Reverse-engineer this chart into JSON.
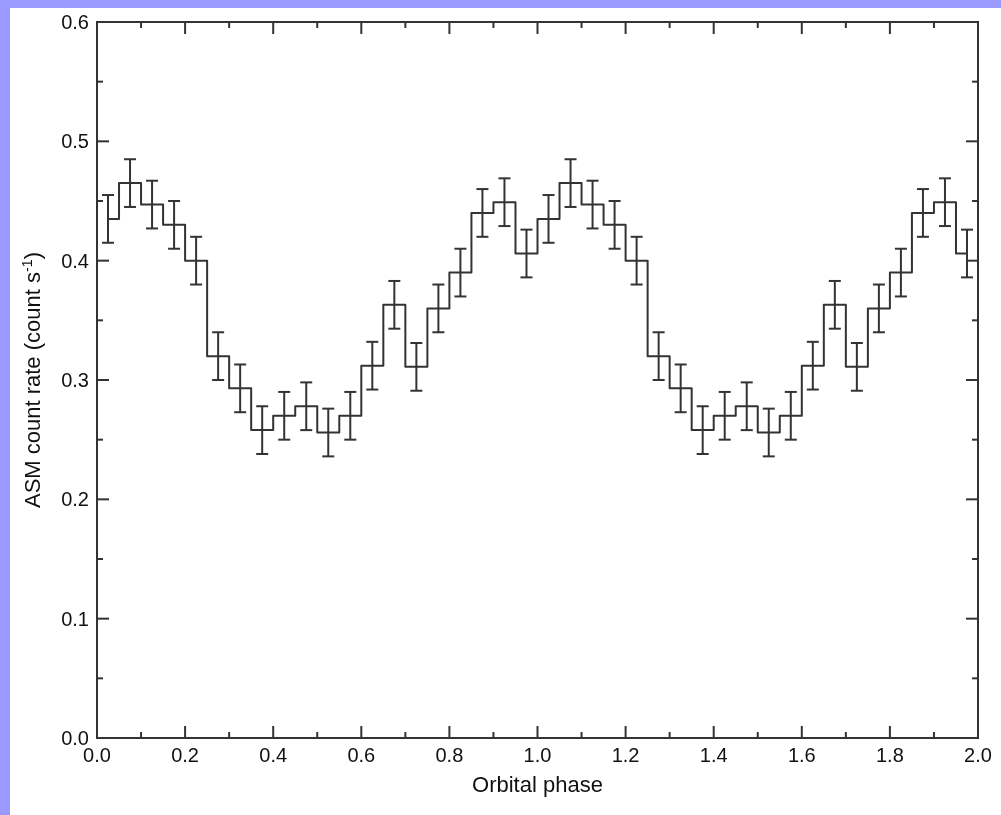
{
  "chart_data": {
    "type": "step",
    "xlabel": "Orbital phase",
    "ylabel": "ASM count rate (count s$^{-1}$)",
    "x": [
      0.025,
      0.075,
      0.125,
      0.175,
      0.225,
      0.275,
      0.325,
      0.375,
      0.425,
      0.475,
      0.525,
      0.575,
      0.625,
      0.675,
      0.725,
      0.775,
      0.825,
      0.875,
      0.925,
      0.975,
      1.025,
      1.075,
      1.125,
      1.175,
      1.225,
      1.275,
      1.325,
      1.375,
      1.425,
      1.475,
      1.525,
      1.575,
      1.625,
      1.675,
      1.725,
      1.775,
      1.825,
      1.875,
      1.925,
      1.975
    ],
    "values": [
      0.435,
      0.465,
      0.447,
      0.43,
      0.4,
      0.32,
      0.293,
      0.258,
      0.27,
      0.278,
      0.256,
      0.27,
      0.312,
      0.363,
      0.311,
      0.36,
      0.39,
      0.44,
      0.449,
      0.406,
      0.435,
      0.465,
      0.447,
      0.43,
      0.4,
      0.32,
      0.293,
      0.258,
      0.27,
      0.278,
      0.256,
      0.27,
      0.312,
      0.363,
      0.311,
      0.36,
      0.39,
      0.44,
      0.449,
      0.406
    ],
    "errors": [
      0.02,
      0.02,
      0.02,
      0.02,
      0.02,
      0.02,
      0.02,
      0.02,
      0.02,
      0.02,
      0.02,
      0.02,
      0.02,
      0.02,
      0.02,
      0.02,
      0.02,
      0.02,
      0.02,
      0.02,
      0.02,
      0.02,
      0.02,
      0.02,
      0.02,
      0.02,
      0.02,
      0.02,
      0.02,
      0.02,
      0.02,
      0.02,
      0.02,
      0.02,
      0.02,
      0.02,
      0.02,
      0.02,
      0.02,
      0.02
    ],
    "color": "#333333",
    "xlim": [
      0,
      2.0
    ],
    "xticks": [
      {
        "value": 0,
        "label": "0.0"
      },
      {
        "value": 0.1,
        "label": null
      },
      {
        "value": 0.2,
        "label": "0.2"
      },
      {
        "value": 0.3,
        "label": null
      },
      {
        "value": 0.4,
        "label": "0.4"
      },
      {
        "value": 0.5,
        "label": null
      },
      {
        "value": 0.6,
        "label": "0.6"
      },
      {
        "value": 0.7,
        "label": null
      },
      {
        "value": 0.8,
        "label": "0.8"
      },
      {
        "value": 0.9,
        "label": null
      },
      {
        "value": 1.0,
        "label": "1.0"
      },
      {
        "value": 1.1,
        "label": null
      },
      {
        "value": 1.2,
        "label": "1.2"
      },
      {
        "value": 1.3,
        "label": null
      },
      {
        "value": 1.4,
        "label": "1.4"
      },
      {
        "value": 1.5,
        "label": null
      },
      {
        "value": 1.6,
        "label": "1.6"
      },
      {
        "value": 1.7,
        "label": null
      },
      {
        "value": 1.8,
        "label": "1.8"
      },
      {
        "value": 1.9,
        "label": null
      },
      {
        "value": 2.0,
        "label": "2.0"
      }
    ],
    "ylim": [
      0,
      0.6
    ],
    "yticks": [
      {
        "value": 0,
        "label": "0.0"
      },
      {
        "value": 0.05,
        "label": null
      },
      {
        "value": 0.1,
        "label": "0.1"
      },
      {
        "value": 0.15,
        "label": null
      },
      {
        "value": 0.2,
        "label": "0.2"
      },
      {
        "value": 0.25,
        "label": null
      },
      {
        "value": 0.3,
        "label": "0.3"
      },
      {
        "value": 0.35,
        "label": null
      },
      {
        "value": 0.4,
        "label": "0.4"
      },
      {
        "value": 0.45,
        "label": null
      },
      {
        "value": 0.5,
        "label": "0.5"
      },
      {
        "value": 0.55,
        "label": null
      },
      {
        "value": 0.6,
        "label": "0.6"
      }
    ],
    "marker": "none",
    "grid": false
  }
}
